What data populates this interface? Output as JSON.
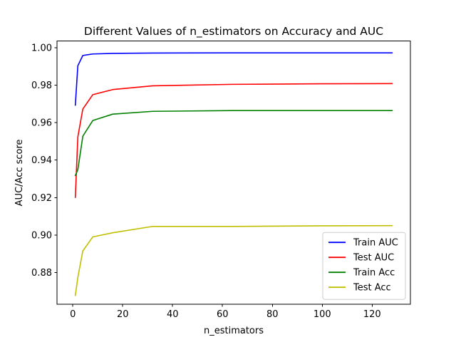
{
  "chart_data": {
    "type": "line",
    "title": "Different Values of n_estimators on Accuracy and AUC",
    "xlabel": "n_estimators",
    "ylabel": "AUC/Acc score",
    "xlim": [
      -6.35,
      135.35
    ],
    "ylim": [
      0.863,
      1.0035
    ],
    "xticks": [
      0,
      20,
      40,
      60,
      80,
      100,
      120
    ],
    "yticks": [
      0.88,
      0.9,
      0.92,
      0.94,
      0.96,
      0.98,
      1.0
    ],
    "ytick_labels": [
      "0.88",
      "0.90",
      "0.92",
      "0.94",
      "0.96",
      "0.98",
      "1.00"
    ],
    "grid": false,
    "legend_position": "lower-right",
    "x": [
      1,
      2,
      4,
      8,
      16,
      32,
      64,
      100,
      128
    ],
    "series": [
      {
        "name": "Train AUC",
        "color": "#0000ff",
        "values": [
          0.9693,
          0.9903,
          0.9958,
          0.9966,
          0.9969,
          0.9971,
          0.9972,
          0.9972,
          0.9972
        ]
      },
      {
        "name": "Test AUC",
        "color": "#ff0000",
        "values": [
          0.9201,
          0.9523,
          0.9672,
          0.9749,
          0.9776,
          0.9796,
          0.9804,
          0.9807,
          0.9808
        ]
      },
      {
        "name": "Train Acc",
        "color": "#008000",
        "values": [
          0.9318,
          0.9348,
          0.9527,
          0.9611,
          0.9645,
          0.966,
          0.9664,
          0.9664,
          0.9664
        ]
      },
      {
        "name": "Test Acc",
        "color": "#bfbf00",
        "values": [
          0.8678,
          0.8773,
          0.8915,
          0.899,
          0.9012,
          0.9046,
          0.9046,
          0.9049,
          0.905
        ]
      }
    ]
  }
}
